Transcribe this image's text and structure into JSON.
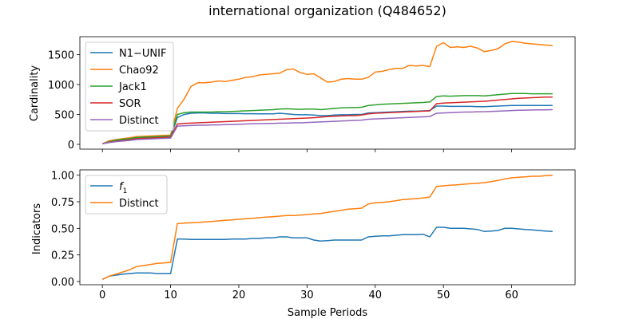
{
  "title": "international organization (Q484652)",
  "colors": {
    "blue": "#1f77b4",
    "orange": "#ff7f0e",
    "green": "#2ca02c",
    "red": "#d62728",
    "purple": "#9467bd"
  },
  "chart_data": [
    {
      "type": "line",
      "title": "international organization (Q484652)",
      "xlabel": "",
      "ylabel": "Cardinality",
      "xlim": [
        -3.3,
        69.3
      ],
      "ylim": [
        -80,
        1800
      ],
      "xticks": [
        0,
        10,
        20,
        30,
        40,
        50,
        60
      ],
      "yticks": [
        0,
        500,
        1000,
        1500
      ],
      "legend": "upper-left",
      "x": [
        0,
        1,
        2,
        3,
        4,
        5,
        6,
        7,
        8,
        9,
        10,
        11,
        12,
        13,
        14,
        15,
        16,
        17,
        18,
        19,
        20,
        21,
        22,
        23,
        24,
        25,
        26,
        27,
        28,
        29,
        30,
        31,
        32,
        33,
        34,
        35,
        36,
        37,
        38,
        39,
        40,
        41,
        42,
        43,
        44,
        45,
        46,
        47,
        48,
        49,
        50,
        51,
        52,
        53,
        54,
        55,
        56,
        57,
        58,
        59,
        60,
        61,
        62,
        63,
        64,
        65,
        66
      ],
      "series": [
        {
          "name": "N1−UNIF",
          "color": "blue",
          "values": [
            10,
            40,
            60,
            75,
            85,
            100,
            105,
            110,
            115,
            120,
            125,
            450,
            500,
            520,
            525,
            525,
            520,
            520,
            515,
            515,
            515,
            512,
            512,
            510,
            510,
            510,
            520,
            510,
            500,
            495,
            495,
            490,
            480,
            480,
            490,
            495,
            495,
            500,
            500,
            525,
            530,
            535,
            540,
            545,
            550,
            555,
            555,
            560,
            565,
            640,
            640,
            635,
            635,
            635,
            635,
            630,
            630,
            635,
            640,
            645,
            650,
            650,
            650,
            650,
            650,
            650,
            650
          ]
        },
        {
          "name": "Chao92",
          "color": "orange",
          "values": [
            10,
            60,
            80,
            95,
            110,
            130,
            135,
            140,
            145,
            150,
            155,
            600,
            760,
            970,
            1030,
            1030,
            1040,
            1060,
            1050,
            1070,
            1090,
            1120,
            1130,
            1160,
            1170,
            1180,
            1190,
            1250,
            1260,
            1200,
            1170,
            1180,
            1110,
            1040,
            1050,
            1090,
            1100,
            1090,
            1090,
            1120,
            1210,
            1220,
            1250,
            1270,
            1270,
            1320,
            1310,
            1320,
            1300,
            1640,
            1700,
            1620,
            1630,
            1620,
            1640,
            1610,
            1550,
            1570,
            1600,
            1680,
            1720,
            1710,
            1690,
            1680,
            1670,
            1660,
            1650
          ]
        },
        {
          "name": "Jack1",
          "color": "green",
          "values": [
            10,
            45,
            70,
            85,
            95,
            115,
            120,
            125,
            130,
            135,
            140,
            500,
            530,
            540,
            540,
            540,
            540,
            545,
            545,
            550,
            555,
            560,
            565,
            570,
            575,
            580,
            590,
            595,
            590,
            585,
            590,
            590,
            580,
            590,
            600,
            610,
            615,
            615,
            620,
            650,
            660,
            670,
            675,
            680,
            685,
            690,
            695,
            700,
            710,
            800,
            810,
            805,
            810,
            815,
            815,
            815,
            810,
            820,
            830,
            840,
            850,
            850,
            850,
            845,
            845,
            845,
            845
          ]
        },
        {
          "name": "SOR",
          "color": "red",
          "values": [
            10,
            35,
            50,
            65,
            75,
            95,
            100,
            105,
            110,
            115,
            120,
            340,
            350,
            355,
            360,
            365,
            370,
            375,
            380,
            385,
            390,
            395,
            400,
            405,
            410,
            415,
            420,
            425,
            430,
            435,
            440,
            445,
            455,
            465,
            470,
            475,
            480,
            480,
            490,
            510,
            520,
            525,
            530,
            535,
            540,
            545,
            550,
            555,
            560,
            680,
            690,
            695,
            700,
            705,
            710,
            715,
            720,
            730,
            740,
            750,
            760,
            770,
            775,
            780,
            785,
            790,
            790
          ]
        },
        {
          "name": "Distinct",
          "color": "purple",
          "values": [
            10,
            30,
            45,
            55,
            65,
            80,
            85,
            90,
            95,
            100,
            105,
            305,
            310,
            315,
            320,
            320,
            325,
            325,
            330,
            330,
            335,
            340,
            345,
            345,
            350,
            350,
            355,
            355,
            360,
            360,
            365,
            370,
            375,
            380,
            385,
            390,
            395,
            400,
            405,
            420,
            425,
            430,
            435,
            440,
            445,
            450,
            455,
            460,
            465,
            520,
            525,
            530,
            535,
            540,
            540,
            545,
            545,
            550,
            555,
            560,
            565,
            570,
            572,
            575,
            576,
            578,
            580
          ]
        }
      ]
    },
    {
      "type": "line",
      "xlabel": "Sample Periods",
      "ylabel": "Indicators",
      "xlim": [
        -3.3,
        69.3
      ],
      "ylim": [
        -0.03,
        1.05
      ],
      "xticks": [
        0,
        10,
        20,
        30,
        40,
        50,
        60
      ],
      "yticks": [
        0.0,
        0.25,
        0.5,
        0.75,
        1.0
      ],
      "legend": "upper-left",
      "x": [
        0,
        1,
        2,
        3,
        4,
        5,
        6,
        7,
        8,
        9,
        10,
        11,
        12,
        13,
        14,
        15,
        16,
        17,
        18,
        19,
        20,
        21,
        22,
        23,
        24,
        25,
        26,
        27,
        28,
        29,
        30,
        31,
        32,
        33,
        34,
        35,
        36,
        37,
        38,
        39,
        40,
        41,
        42,
        43,
        44,
        45,
        46,
        47,
        48,
        49,
        50,
        51,
        52,
        53,
        54,
        55,
        56,
        57,
        58,
        59,
        60,
        61,
        62,
        63,
        64,
        65,
        66
      ],
      "series": [
        {
          "name": "f1",
          "color": "blue",
          "values": [
            0.02,
            0.05,
            0.06,
            0.07,
            0.075,
            0.08,
            0.08,
            0.08,
            0.075,
            0.075,
            0.075,
            0.4,
            0.4,
            0.395,
            0.395,
            0.395,
            0.395,
            0.395,
            0.395,
            0.4,
            0.4,
            0.4,
            0.405,
            0.405,
            0.41,
            0.41,
            0.42,
            0.42,
            0.41,
            0.41,
            0.41,
            0.39,
            0.38,
            0.385,
            0.39,
            0.39,
            0.39,
            0.39,
            0.39,
            0.42,
            0.425,
            0.43,
            0.43,
            0.435,
            0.44,
            0.44,
            0.44,
            0.445,
            0.42,
            0.51,
            0.51,
            0.5,
            0.5,
            0.5,
            0.495,
            0.49,
            0.47,
            0.475,
            0.48,
            0.5,
            0.5,
            0.495,
            0.49,
            0.485,
            0.48,
            0.475,
            0.47
          ]
        },
        {
          "name": "Distinct",
          "color": "orange",
          "values": [
            0.02,
            0.05,
            0.07,
            0.09,
            0.11,
            0.14,
            0.15,
            0.16,
            0.17,
            0.175,
            0.18,
            0.545,
            0.55,
            0.552,
            0.555,
            0.56,
            0.565,
            0.57,
            0.575,
            0.58,
            0.585,
            0.59,
            0.595,
            0.6,
            0.605,
            0.61,
            0.615,
            0.62,
            0.62,
            0.625,
            0.63,
            0.635,
            0.64,
            0.65,
            0.66,
            0.67,
            0.68,
            0.685,
            0.69,
            0.73,
            0.74,
            0.745,
            0.75,
            0.76,
            0.77,
            0.775,
            0.78,
            0.785,
            0.795,
            0.895,
            0.9,
            0.905,
            0.91,
            0.915,
            0.92,
            0.925,
            0.93,
            0.94,
            0.95,
            0.965,
            0.975,
            0.98,
            0.985,
            0.99,
            0.99,
            0.995,
            1.0
          ]
        }
      ]
    }
  ]
}
